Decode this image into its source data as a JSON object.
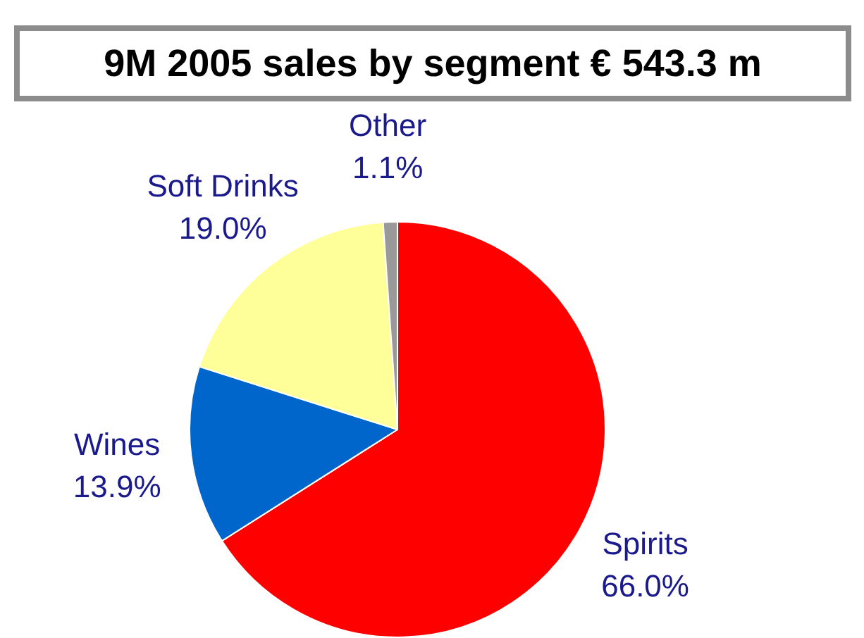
{
  "chart_data": {
    "type": "pie",
    "title": "9M 2005 sales by segment € 543.3 m",
    "categories": [
      "Spirits",
      "Wines",
      "Soft Drinks",
      "Other"
    ],
    "values": [
      66.0,
      13.9,
      19.0,
      1.1
    ],
    "value_labels": [
      "66.0%",
      "13.9%",
      "19.0%",
      "1.1%"
    ],
    "colors": [
      "#ff0000",
      "#0066cc",
      "#ffff99",
      "#999999"
    ],
    "legend": false
  }
}
